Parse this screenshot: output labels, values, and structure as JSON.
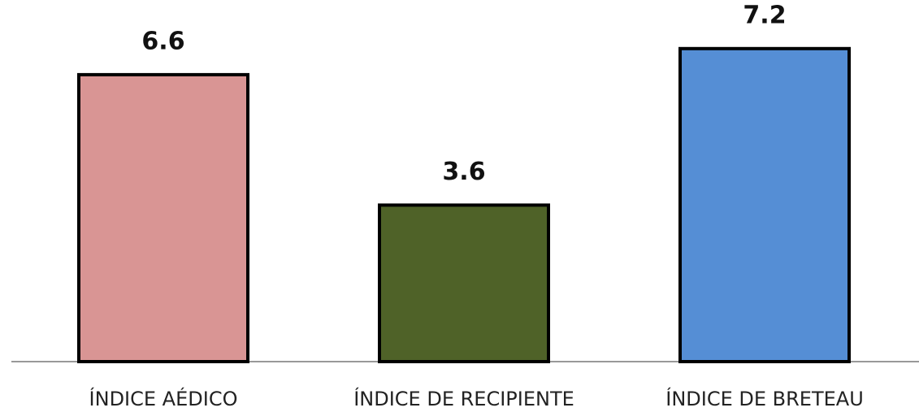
{
  "chart_data": {
    "type": "bar",
    "categories": [
      "ÍNDICE AÉDICO",
      "ÍNDICE DE RECIPIENTE",
      "ÍNDICE DE BRETEAU"
    ],
    "values": [
      6.6,
      3.6,
      7.2
    ],
    "colors": [
      "#d99594",
      "#4f6228",
      "#558ed5"
    ]
  }
}
